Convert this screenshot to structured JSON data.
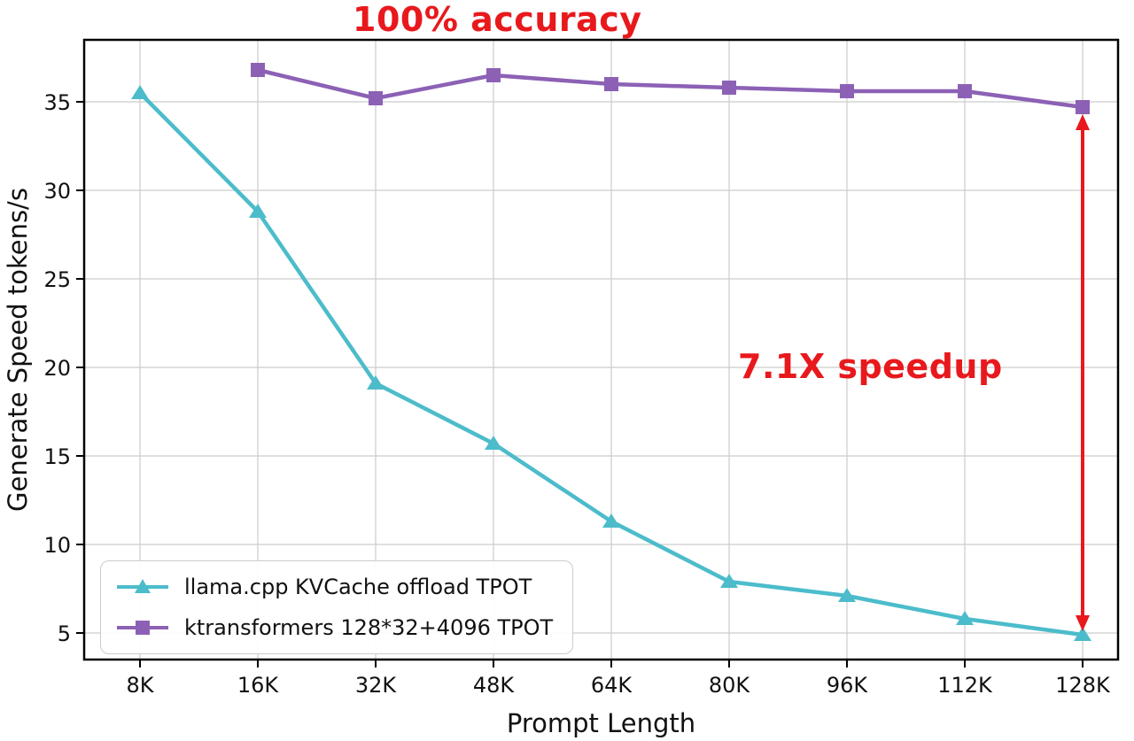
{
  "annotations": {
    "accuracy": "100% accuracy",
    "speedup": "7.1X speedup",
    "color": "#e8191c"
  },
  "chart_data": {
    "type": "line",
    "x_categories": [
      "8K",
      "16K",
      "32K",
      "48K",
      "64K",
      "80K",
      "96K",
      "112K",
      "128K"
    ],
    "xlabel": "Prompt Length",
    "ylabel": "Generate Speed tokens/s",
    "ylim": [
      3.5,
      38.5
    ],
    "yticks": [
      5,
      10,
      15,
      20,
      25,
      30,
      35
    ],
    "grid": true,
    "legend_position": "lower left",
    "series": [
      {
        "name": "llama.cpp KVCache offload TPOT",
        "color": "#4cbccb",
        "marker": "triangle",
        "values": [
          35.5,
          28.8,
          19.1,
          15.7,
          11.3,
          7.9,
          7.1,
          5.8,
          4.9
        ]
      },
      {
        "name": "ktransformers 128*32+4096 TPOT",
        "color": "#8c61b5",
        "marker": "square",
        "values": [
          null,
          36.8,
          35.2,
          36.5,
          36.0,
          35.8,
          35.6,
          35.6,
          34.7
        ]
      }
    ],
    "arrow": {
      "x": "128K",
      "y_top": 34.3,
      "y_bottom": 5.1,
      "color": "#e8191c"
    }
  }
}
